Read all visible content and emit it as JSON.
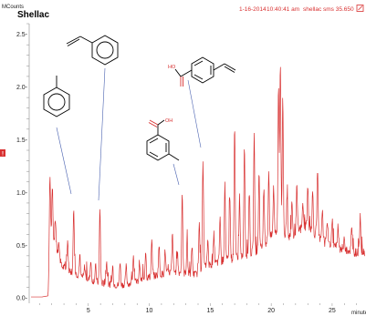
{
  "header": {
    "date": "1-16-2014",
    "time": "10:40:41 am",
    "sample": "shellac",
    "scan": "sms 35.650"
  },
  "chart_data": {
    "type": "line",
    "title": "Shellac",
    "ylabel": "MCounts",
    "xlabel": "minutes",
    "ylim": [
      -0.05,
      2.6
    ],
    "xlim": [
      0.3,
      27.7
    ],
    "y_ticks": [
      "0.0-",
      "0.5-",
      "1.0-",
      "1.5-",
      "2.0-",
      "2.5-"
    ],
    "x_ticks": [
      "5",
      "10",
      "15",
      "20",
      "25"
    ],
    "grid": false,
    "line_color": "#d83030",
    "series": [
      {
        "baseline_breakpoints": [
          [
            0.3,
            0.01
          ],
          [
            1.2,
            0.01
          ],
          [
            1.7,
            0.02
          ],
          [
            1.85,
            0.6
          ],
          [
            2.2,
            0.55
          ],
          [
            2.8,
            0.3
          ],
          [
            4.5,
            0.2
          ],
          [
            6.0,
            0.14
          ],
          [
            7.5,
            0.12
          ],
          [
            9.0,
            0.15
          ],
          [
            10.0,
            0.2
          ],
          [
            12.0,
            0.25
          ],
          [
            13.8,
            0.22
          ],
          [
            14.5,
            0.3
          ],
          [
            17.0,
            0.38
          ],
          [
            19.0,
            0.45
          ],
          [
            20.5,
            0.65
          ],
          [
            21.5,
            0.58
          ],
          [
            23.0,
            0.7
          ],
          [
            24.0,
            0.55
          ],
          [
            25.5,
            0.48
          ],
          [
            27.0,
            0.43
          ],
          [
            27.7,
            0.44
          ]
        ],
        "peaks": [
          [
            1.85,
            1.2
          ],
          [
            2.05,
            1.05
          ],
          [
            2.3,
            0.75
          ],
          [
            2.6,
            0.5
          ],
          [
            3.3,
            0.55
          ],
          [
            3.8,
            0.88
          ],
          [
            4.3,
            0.4
          ],
          [
            4.7,
            0.3
          ],
          [
            5.2,
            0.35
          ],
          [
            5.6,
            0.3
          ],
          [
            5.95,
            0.85
          ],
          [
            6.5,
            0.35
          ],
          [
            7.0,
            0.3
          ],
          [
            7.6,
            0.35
          ],
          [
            8.1,
            0.3
          ],
          [
            8.7,
            0.4
          ],
          [
            9.2,
            0.35
          ],
          [
            9.7,
            0.45
          ],
          [
            10.2,
            0.55
          ],
          [
            10.8,
            0.5
          ],
          [
            11.3,
            0.45
          ],
          [
            11.9,
            0.6
          ],
          [
            12.3,
            0.45
          ],
          [
            12.7,
            1.0
          ],
          [
            13.1,
            0.55
          ],
          [
            13.5,
            0.5
          ],
          [
            14.1,
            0.75
          ],
          [
            14.4,
            1.3
          ],
          [
            14.8,
            0.55
          ],
          [
            15.3,
            0.6
          ],
          [
            15.8,
            0.75
          ],
          [
            16.2,
            1.1
          ],
          [
            16.6,
            1.0
          ],
          [
            17.0,
            1.65
          ],
          [
            17.4,
            0.95
          ],
          [
            17.8,
            1.45
          ],
          [
            18.2,
            1.0
          ],
          [
            18.6,
            1.55
          ],
          [
            19.0,
            1.2
          ],
          [
            19.4,
            1.05
          ],
          [
            19.8,
            1.2
          ],
          [
            20.2,
            1.05
          ],
          [
            20.6,
            2.0
          ],
          [
            20.75,
            2.25
          ],
          [
            20.95,
            1.9
          ],
          [
            21.3,
            1.0
          ],
          [
            21.7,
            0.95
          ],
          [
            22.1,
            1.05
          ],
          [
            22.6,
            0.9
          ],
          [
            23.0,
            1.05
          ],
          [
            23.4,
            1.0
          ],
          [
            23.8,
            1.2
          ],
          [
            24.2,
            0.85
          ],
          [
            24.6,
            0.75
          ],
          [
            25.0,
            0.75
          ],
          [
            25.5,
            0.65
          ],
          [
            26.0,
            0.55
          ],
          [
            26.6,
            0.65
          ],
          [
            27.3,
            0.8
          ]
        ]
      }
    ]
  },
  "structures": {
    "vinylbenzoic_oh": "HO",
    "toluic_oh": "OH"
  },
  "side_marker": "!"
}
